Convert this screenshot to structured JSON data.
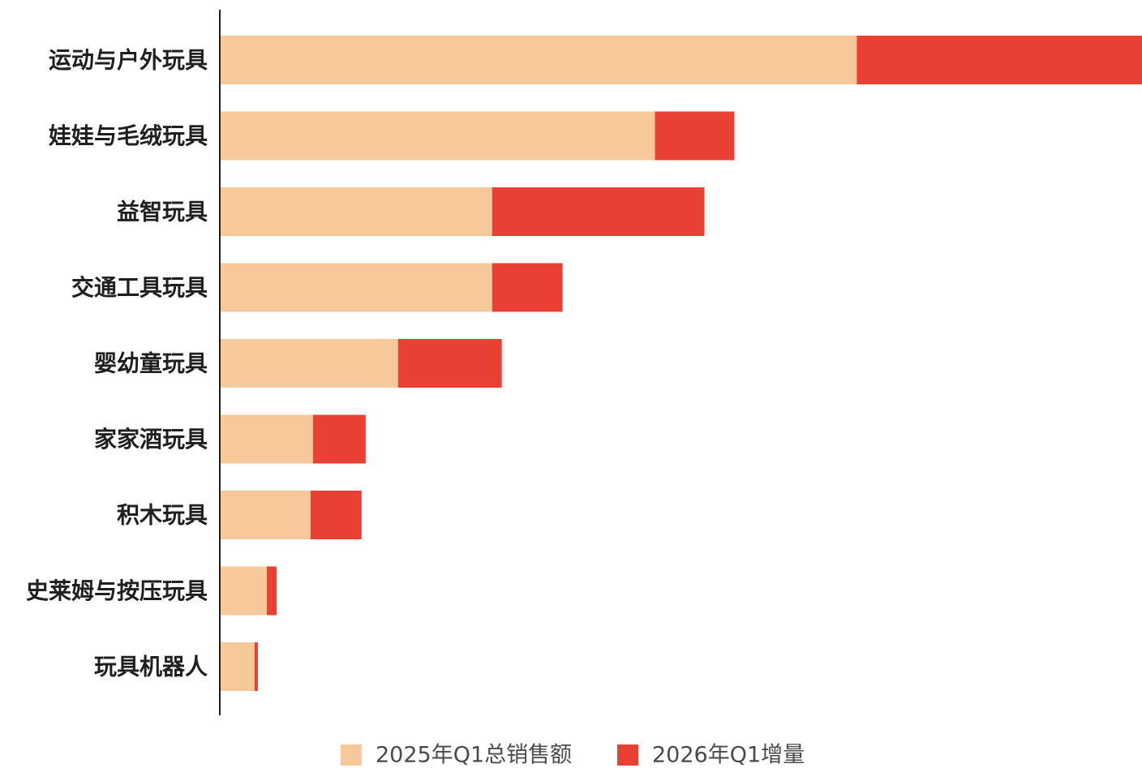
{
  "chart_data": {
    "type": "bar",
    "orientation": "horizontal",
    "stacked": true,
    "categories": [
      "运动与户外玩具",
      "娃娃与毛绒玩具",
      "益智玩具",
      "交通工具玩具",
      "婴幼童玩具",
      "家家酒玩具",
      "积木玩具",
      "史莱姆与按压玩具",
      "玩具机器人"
    ],
    "series": [
      {
        "name": "2025年Q1总销售额",
        "color": "#F7C99A",
        "values": [
          786,
          537,
          336,
          336,
          220,
          115,
          112,
          58,
          43
        ]
      },
      {
        "name": "2026年Q1增量",
        "color": "#E84133",
        "values": [
          352,
          98,
          262,
          87,
          128,
          65,
          63,
          12,
          4
        ]
      }
    ],
    "xlim": [
      0,
      1138
    ],
    "grid": false,
    "legend_position": "bottom-center",
    "title": "",
    "xlabel": "",
    "ylabel": ""
  }
}
